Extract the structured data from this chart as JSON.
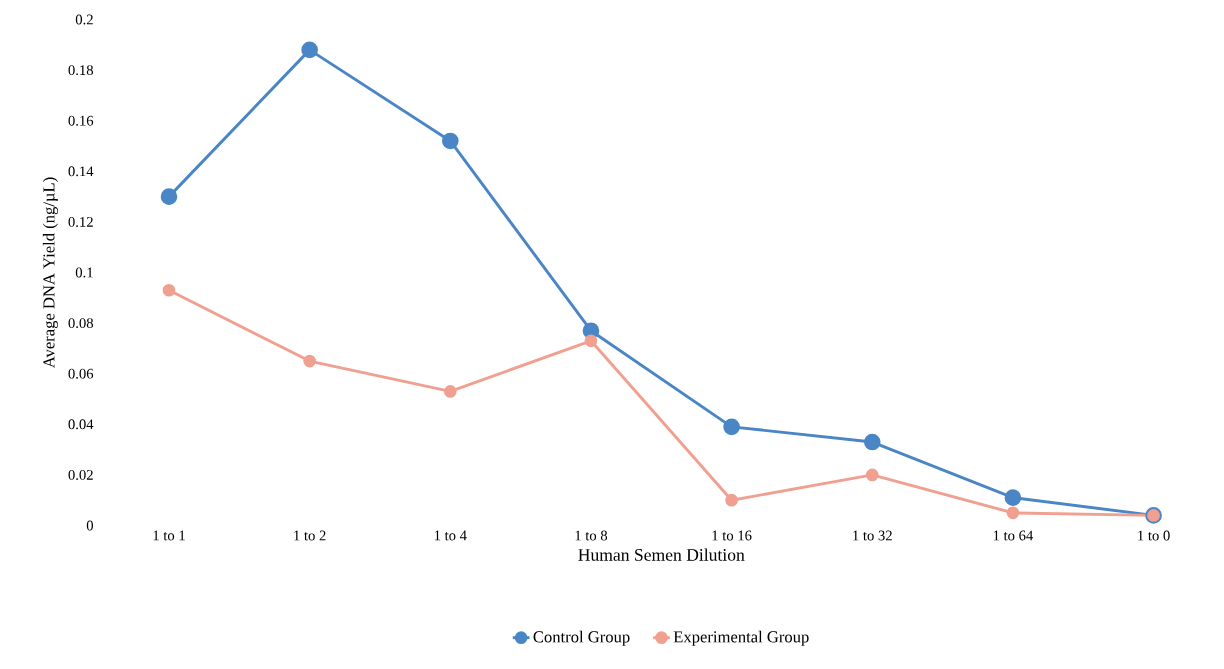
{
  "chart_data": {
    "type": "line",
    "xlabel": "Human Semen Dilution",
    "ylabel": "Average DNA Yield (ng/µL)",
    "categories": [
      "1 to 1",
      "1 to 2",
      "1 to 4",
      "1 to 8",
      "1 to 16",
      "1 to 32",
      "1 to 64",
      "1 to 0"
    ],
    "series": [
      {
        "name": "Control Group",
        "color": "#4a86c5",
        "values": [
          0.13,
          0.188,
          0.152,
          0.077,
          0.039,
          0.033,
          0.011,
          0.004
        ]
      },
      {
        "name": "Experimental Group",
        "color": "#f0a090",
        "values": [
          0.093,
          0.065,
          0.053,
          0.073,
          0.01,
          0.02,
          0.005,
          0.004
        ]
      }
    ],
    "ylim": [
      0,
      0.2
    ],
    "yticks": [
      0,
      0.02,
      0.04,
      0.06,
      0.08,
      0.1,
      0.12,
      0.14,
      0.16,
      0.18,
      0.2
    ],
    "legend": "bottom",
    "marker": "circle"
  }
}
